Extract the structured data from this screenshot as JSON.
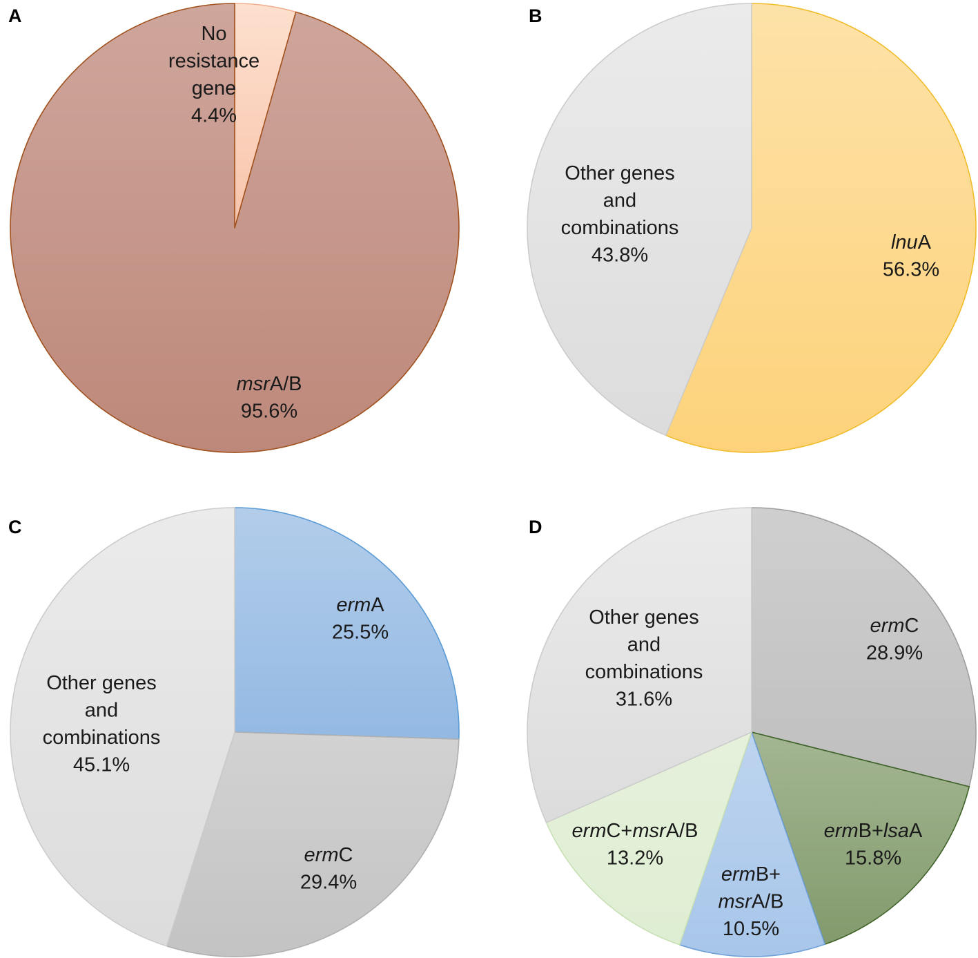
{
  "chart_data": [
    {
      "type": "pie",
      "panel": "A",
      "start": "top, clockwise",
      "slices": [
        {
          "name": "No resistance gene",
          "value": 4.4,
          "label": [
            [
              [
                "No",
                false
              ]
            ],
            [
              [
                "resistance",
                false
              ]
            ],
            [
              [
                "gene",
                false
              ]
            ],
            [
              [
                "4.4%",
                false
              ]
            ]
          ],
          "fill_top": "#fde0cf",
          "fill_bottom": "#f8c4aa",
          "stroke": "#f3b090"
        },
        {
          "name": "msrA/B",
          "value": 95.6,
          "label": [
            [
              [
                "msr",
                true
              ],
              [
                "A/B",
                false
              ]
            ],
            [
              [
                "95.6%",
                false
              ]
            ]
          ],
          "fill_top": "#cfa69c",
          "fill_bottom": "#bd887a",
          "stroke": "#a0501c"
        }
      ]
    },
    {
      "type": "pie",
      "panel": "B",
      "start": "top, clockwise",
      "slices": [
        {
          "name": "lnuA",
          "value": 56.3,
          "label": [
            [
              [
                "lnu",
                true
              ],
              [
                "A",
                false
              ]
            ],
            [
              [
                "56.3%",
                false
              ]
            ]
          ],
          "fill_top": "#fde2a8",
          "fill_bottom": "#fdd27a",
          "stroke": "#f0bc2a"
        },
        {
          "name": "Other genes and combinations",
          "value": 43.8,
          "label": [
            [
              [
                "Other genes",
                false
              ]
            ],
            [
              [
                "and",
                false
              ]
            ],
            [
              [
                "combinations",
                false
              ]
            ],
            [
              [
                "43.8%",
                false
              ]
            ]
          ],
          "fill_top": "#ebebeb",
          "fill_bottom": "#dcdcdc",
          "stroke": "#cccccc"
        }
      ]
    },
    {
      "type": "pie",
      "panel": "C",
      "start": "top, clockwise",
      "slices": [
        {
          "name": "ermA",
          "value": 25.5,
          "label": [
            [
              [
                "erm",
                true
              ],
              [
                "A",
                false
              ]
            ],
            [
              [
                "25.5%",
                false
              ]
            ]
          ],
          "fill_top": "#b3cdea",
          "fill_bottom": "#93b9e3",
          "stroke": "#5b9bd5"
        },
        {
          "name": "ermC",
          "value": 29.4,
          "label": [
            [
              [
                "erm",
                true
              ],
              [
                "C",
                false
              ]
            ],
            [
              [
                "29.4%",
                false
              ]
            ]
          ],
          "fill_top": "#d2d2d2",
          "fill_bottom": "#c3c3c3",
          "stroke": "#b0b0b0"
        },
        {
          "name": "Other genes and combinations",
          "value": 45.1,
          "label": [
            [
              [
                "Other genes",
                false
              ]
            ],
            [
              [
                "and",
                false
              ]
            ],
            [
              [
                "combinations",
                false
              ]
            ],
            [
              [
                "45.1%",
                false
              ]
            ]
          ],
          "fill_top": "#ebebeb",
          "fill_bottom": "#dcdcdc",
          "stroke": "#cccccc"
        }
      ]
    },
    {
      "type": "pie",
      "panel": "D",
      "start": "top, clockwise",
      "slices": [
        {
          "name": "ermC",
          "value": 28.9,
          "label": [
            [
              [
                "erm",
                true
              ],
              [
                "C",
                false
              ]
            ],
            [
              [
                "28.9%",
                false
              ]
            ]
          ],
          "fill_top": "#cfcfcf",
          "fill_bottom": "#bfbfbf",
          "stroke": "#9e9e9e"
        },
        {
          "name": "ermB+lsaA",
          "value": 15.8,
          "label": [
            [
              [
                "erm",
                true
              ],
              [
                "B+",
                false
              ],
              [
                "lsa",
                true
              ],
              [
                "A",
                false
              ]
            ],
            [
              [
                "15.8%",
                false
              ]
            ]
          ],
          "fill_top": "#a4b693",
          "fill_bottom": "#829a6c",
          "stroke": "#3f6328"
        },
        {
          "name": "ermB+msrA/B",
          "value": 10.5,
          "label": [
            [
              [
                "erm",
                true
              ],
              [
                "B+",
                false
              ]
            ],
            [
              [
                "msr",
                true
              ],
              [
                "A/B",
                false
              ]
            ],
            [
              [
                "10.5%",
                false
              ]
            ]
          ],
          "fill_top": "#bdd4ee",
          "fill_bottom": "#a8c6ea",
          "stroke": "#6fa0d8"
        },
        {
          "name": "ermC+msrA/B",
          "value": 13.2,
          "label": [
            [
              [
                "erm",
                true
              ],
              [
                "C+",
                false
              ],
              [
                "msr",
                true
              ],
              [
                "A/B",
                false
              ]
            ],
            [
              [
                "13.2%",
                false
              ]
            ]
          ],
          "fill_top": "#e6f1dc",
          "fill_bottom": "#deeed2",
          "stroke": "#c8e0b4"
        },
        {
          "name": "Other genes and combinations",
          "value": 31.6,
          "label": [
            [
              [
                "Other genes",
                false
              ]
            ],
            [
              [
                "and",
                false
              ]
            ],
            [
              [
                "combinations",
                false
              ]
            ],
            [
              [
                "31.6%",
                false
              ]
            ]
          ],
          "fill_top": "#ebebeb",
          "fill_bottom": "#dcdcdc",
          "stroke": "#cccccc"
        }
      ]
    }
  ],
  "panel_letters": [
    "A",
    "B",
    "C",
    "D"
  ]
}
